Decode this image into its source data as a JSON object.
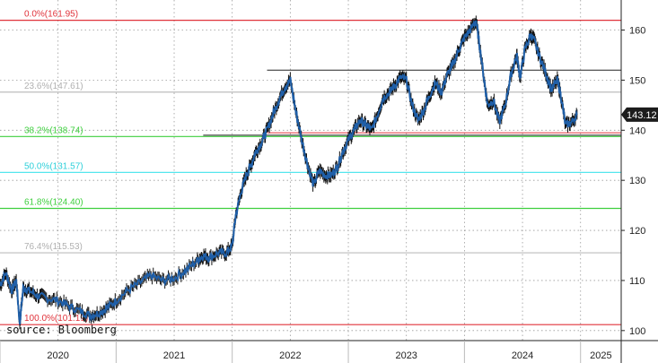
{
  "chart_data": {
    "type": "line",
    "source": "source: Bloomberg",
    "last_price_label": "143.12",
    "ylim": [
      98,
      166
    ],
    "xlim": [
      2020.0,
      2025.35
    ],
    "y_ticks": [
      100,
      110,
      120,
      130,
      140,
      150,
      160
    ],
    "y_tick_labels": [
      "100",
      "110",
      "120",
      "130",
      "140",
      "150",
      "160"
    ],
    "x_tick_years": [
      "2020",
      "2021",
      "2022",
      "2023",
      "2024",
      "2025"
    ],
    "grid": true,
    "series_color": "#1f5fa8",
    "fibonacci_levels": [
      {
        "label": "0.0%(161.95)",
        "value": 161.95,
        "color": "#e0323a",
        "text_color": "#e0323a"
      },
      {
        "label": "23.6%(147.61)",
        "value": 147.61,
        "color": "#bdbdbd",
        "text_color": "#b0b0b0"
      },
      {
        "label": "38.2%(138.74)",
        "value": 138.74,
        "color": "#3ecf3e",
        "text_color": "#3ecf3e"
      },
      {
        "label": "50.0%(131.57)",
        "value": 131.57,
        "color": "#55e6ee",
        "text_color": "#2ed0da"
      },
      {
        "label": "61.8%(124.40)",
        "value": 124.4,
        "color": "#3ecf3e",
        "text_color": "#3ecf3e"
      },
      {
        "label": "76.4%(115.53)",
        "value": 115.53,
        "color": "#bdbdbd",
        "text_color": "#b0b0b0"
      },
      {
        "label": "100.0%(101.19)",
        "value": 101.19,
        "color": "#e0323a",
        "text_color": "#e0323a"
      }
    ],
    "horizontal_lines": [
      {
        "x_start": 2022.3,
        "x_end": 2025.35,
        "value": 152.0,
        "color": "#222222"
      },
      {
        "x_start": 2022.3,
        "x_end": 2025.35,
        "value": 139.5,
        "color": "#e0323a"
      },
      {
        "x_start": 2021.75,
        "x_end": 2025.35,
        "value": 139.0,
        "color": "#222222"
      }
    ],
    "series": [
      {
        "points": [
          [
            2020.0,
            109.0
          ],
          [
            2020.05,
            111.5
          ],
          [
            2020.1,
            108.0
          ],
          [
            2020.14,
            110.0
          ],
          [
            2020.17,
            101.5
          ],
          [
            2020.2,
            108.5
          ],
          [
            2020.25,
            108.0
          ],
          [
            2020.32,
            107.0
          ],
          [
            2020.4,
            106.5
          ],
          [
            2020.5,
            106.0
          ],
          [
            2020.6,
            104.8
          ],
          [
            2020.7,
            103.8
          ],
          [
            2020.78,
            103.0
          ],
          [
            2020.85,
            103.5
          ],
          [
            2020.92,
            104.5
          ],
          [
            2021.0,
            106.0
          ],
          [
            2021.1,
            108.0
          ],
          [
            2021.2,
            109.5
          ],
          [
            2021.3,
            111.0
          ],
          [
            2021.4,
            110.0
          ],
          [
            2021.5,
            110.5
          ],
          [
            2021.6,
            112.0
          ],
          [
            2021.7,
            114.0
          ],
          [
            2021.75,
            115.0
          ],
          [
            2021.8,
            114.5
          ],
          [
            2021.88,
            115.5
          ],
          [
            2021.95,
            115.5
          ],
          [
            2022.0,
            117.0
          ],
          [
            2022.03,
            123.0
          ],
          [
            2022.08,
            128.0
          ],
          [
            2022.12,
            131.0
          ],
          [
            2022.16,
            133.0
          ],
          [
            2022.2,
            135.5
          ],
          [
            2022.25,
            137.5
          ],
          [
            2022.3,
            140.0
          ],
          [
            2022.35,
            143.0
          ],
          [
            2022.4,
            146.0
          ],
          [
            2022.45,
            148.5
          ],
          [
            2022.5,
            150.0
          ],
          [
            2022.55,
            143.5
          ],
          [
            2022.6,
            138.0
          ],
          [
            2022.65,
            133.0
          ],
          [
            2022.7,
            129.0
          ],
          [
            2022.75,
            132.0
          ],
          [
            2022.8,
            131.0
          ],
          [
            2022.85,
            131.0
          ],
          [
            2022.9,
            132.5
          ],
          [
            2022.95,
            135.5
          ],
          [
            2023.0,
            138.0
          ],
          [
            2023.05,
            140.0
          ],
          [
            2023.1,
            142.0
          ],
          [
            2023.15,
            141.0
          ],
          [
            2023.2,
            140.0
          ],
          [
            2023.25,
            143.0
          ],
          [
            2023.3,
            146.5
          ],
          [
            2023.35,
            147.5
          ],
          [
            2023.4,
            149.0
          ],
          [
            2023.45,
            150.5
          ],
          [
            2023.5,
            150.0
          ],
          [
            2023.55,
            145.0
          ],
          [
            2023.6,
            142.0
          ],
          [
            2023.65,
            144.0
          ],
          [
            2023.7,
            147.0
          ],
          [
            2023.75,
            149.5
          ],
          [
            2023.8,
            147.5
          ],
          [
            2023.85,
            151.0
          ],
          [
            2023.9,
            153.0
          ],
          [
            2023.95,
            156.0
          ],
          [
            2024.0,
            158.5
          ],
          [
            2024.05,
            160.0
          ],
          [
            2024.1,
            161.9
          ],
          [
            2024.13,
            157.0
          ],
          [
            2024.17,
            150.0
          ],
          [
            2024.2,
            145.0
          ],
          [
            2024.25,
            146.0
          ],
          [
            2024.3,
            141.5
          ],
          [
            2024.35,
            145.0
          ],
          [
            2024.4,
            151.0
          ],
          [
            2024.45,
            155.0
          ],
          [
            2024.48,
            150.5
          ],
          [
            2024.52,
            156.0
          ],
          [
            2024.57,
            159.0
          ],
          [
            2024.6,
            158.0
          ],
          [
            2024.65,
            154.5
          ],
          [
            2024.7,
            151.5
          ],
          [
            2024.75,
            148.0
          ],
          [
            2024.8,
            150.0
          ],
          [
            2024.83,
            147.0
          ],
          [
            2024.87,
            141.0
          ],
          [
            2024.92,
            141.5
          ],
          [
            2024.97,
            143.12
          ]
        ]
      }
    ]
  }
}
